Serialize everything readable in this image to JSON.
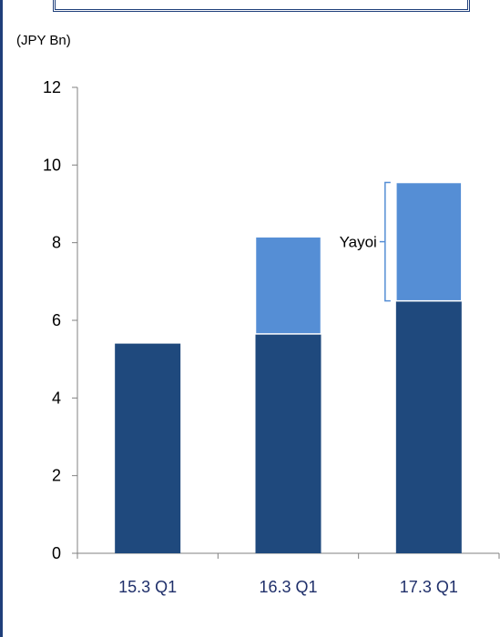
{
  "unit_label": "(JPY Bn)",
  "colors": {
    "frame": "#1f3f7a",
    "base_series": "#1f497d",
    "yayoi_series": "#558ed5",
    "axis": "#808080",
    "bracket": "#558ed5"
  },
  "chart_data": {
    "type": "bar",
    "stacked": true,
    "categories": [
      "15.3 Q1",
      "16.3 Q1",
      "17.3 Q1"
    ],
    "series": [
      {
        "values": [
          5.4,
          5.65,
          6.5
        ]
      },
      {
        "name": "Yayoi",
        "values": [
          0,
          2.5,
          3.05
        ]
      }
    ],
    "ylim": [
      0,
      12
    ],
    "yticks": [
      0,
      2,
      4,
      6,
      8,
      10,
      12
    ],
    "annotation": {
      "text": "Yayoi"
    },
    "grid": false,
    "legend": "none"
  }
}
